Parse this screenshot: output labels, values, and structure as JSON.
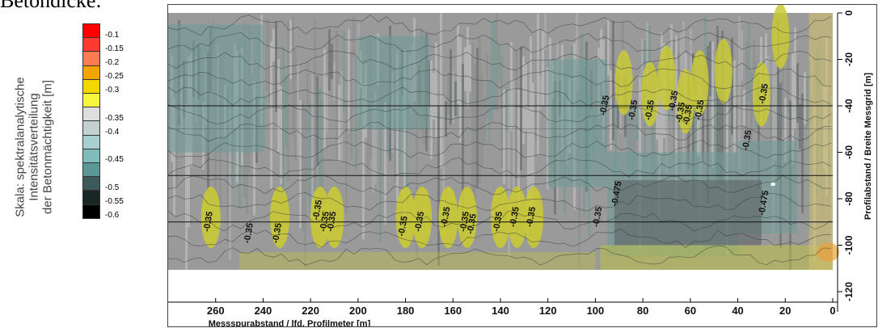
{
  "page": {
    "heading": "Betondicke:"
  },
  "colorbar": {
    "title_lines": [
      "Skala: spektralanalytische",
      "Intensitätsverteilung",
      "der Betonmächtigkeit [m]"
    ],
    "stops": [
      {
        "label": "-0.1",
        "color": "#ff0000"
      },
      {
        "label": "-0.15",
        "color": "#ff3a30"
      },
      {
        "label": "-0.2",
        "color": "#ff7b52"
      },
      {
        "label": "-0.25",
        "color": "#f3a400"
      },
      {
        "label": "-0.3",
        "color": "#f4d800"
      },
      {
        "label": "",
        "color": "#f6f63a"
      },
      {
        "label": "-0.35",
        "color": "#dedede"
      },
      {
        "label": "-0.4",
        "color": "#c4cfcf"
      },
      {
        "label": "",
        "color": "#a8d0d0"
      },
      {
        "label": "-0.45",
        "color": "#80bcbc"
      },
      {
        "label": "",
        "color": "#5c9696"
      },
      {
        "label": "-0.5",
        "color": "#3d5a5a"
      },
      {
        "label": "-0.55",
        "color": "#1a2626"
      },
      {
        "label": "-0.6",
        "color": "#000000"
      }
    ]
  },
  "chart_data": {
    "type": "heatmap",
    "title": "",
    "xlabel": "Messspurabstand / lfd. Profilmeter [m]",
    "ylabel": "Profilabstand / Breite Messgrid [m]",
    "x_range": [
      0,
      280
    ],
    "y_range": [
      -120,
      0
    ],
    "x_ticks": [
      260,
      240,
      220,
      200,
      180,
      160,
      140,
      120,
      100,
      80,
      60,
      40,
      20,
      0
    ],
    "y_ticks": [
      0,
      -20,
      -40,
      -60,
      -80,
      -100,
      -120
    ],
    "grid": true,
    "colors": {
      "background_dark": "#5e6464",
      "mid_gray": "#9a9a9a",
      "light_gray": "#c8c8c8",
      "teal": "#6e9a96",
      "yellow": "#c9c935",
      "orange": "#e8a040"
    },
    "contour_labels": [
      {
        "x": 262,
        "y": -90,
        "text": "-0.35"
      },
      {
        "x": 245,
        "y": -95,
        "text": "-0.35"
      },
      {
        "x": 233,
        "y": -95,
        "text": "-0.35"
      },
      {
        "x": 216,
        "y": -85,
        "text": "-0.35"
      },
      {
        "x": 213,
        "y": -90,
        "text": "-0.35"
      },
      {
        "x": 210,
        "y": -90,
        "text": "-0.35"
      },
      {
        "x": 180,
        "y": -92,
        "text": "-0.35"
      },
      {
        "x": 173,
        "y": -90,
        "text": "-0.35"
      },
      {
        "x": 162,
        "y": -88,
        "text": "-0.35"
      },
      {
        "x": 154,
        "y": -90,
        "text": "-0.35"
      },
      {
        "x": 151,
        "y": -91,
        "text": "-0.35"
      },
      {
        "x": 140,
        "y": -90,
        "text": "-0.35"
      },
      {
        "x": 133,
        "y": -88,
        "text": "-0.35"
      },
      {
        "x": 126,
        "y": -88,
        "text": "-0.35"
      },
      {
        "x": 98,
        "y": -88,
        "text": "-0.35"
      },
      {
        "x": 95,
        "y": -40,
        "text": "-0.35"
      },
      {
        "x": 90,
        "y": -78,
        "text": "-0.475"
      },
      {
        "x": 83,
        "y": -42,
        "text": "-0.35"
      },
      {
        "x": 76,
        "y": -42,
        "text": "-0.35"
      },
      {
        "x": 66,
        "y": -38,
        "text": "-0.35"
      },
      {
        "x": 63,
        "y": -43,
        "text": "-0.35"
      },
      {
        "x": 60,
        "y": -44,
        "text": "-0.35"
      },
      {
        "x": 55,
        "y": -42,
        "text": "-0.35"
      },
      {
        "x": 35,
        "y": -55,
        "text": "-0.35"
      },
      {
        "x": 28,
        "y": -35,
        "text": "-0.35"
      },
      {
        "x": 28,
        "y": -82,
        "text": "-0.475"
      }
    ]
  }
}
